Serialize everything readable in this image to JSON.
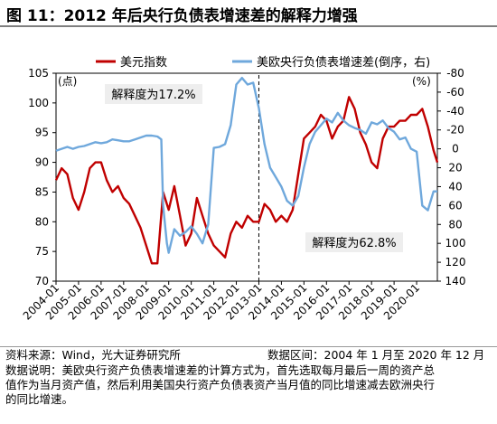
{
  "title": "图 11：2012 年后央行负债表增速差的解释力增强",
  "chart_data": {
    "type": "line",
    "legend": [
      "美元指数",
      "美欧央行负债表增速差(倒序，右)"
    ],
    "left_unit": "(点)",
    "right_unit": "(%)",
    "left_axis": {
      "min": 70,
      "max": 105,
      "ticks": [
        70,
        75,
        80,
        85,
        90,
        95,
        100,
        105
      ]
    },
    "right_axis": {
      "inverted": true,
      "min": -80,
      "max": 140,
      "tick_labels": [
        "-80",
        "-60",
        "-40",
        "-20",
        "0",
        "20",
        "40",
        "60",
        "80",
        "100",
        "120",
        "140"
      ]
    },
    "x_labels": [
      "2004-01",
      "2005-01",
      "2006-01",
      "2007-01",
      "2008-01",
      "2009-01",
      "2010-01",
      "2011-01",
      "2012-01",
      "2013-01",
      "2014-01",
      "2015-01",
      "2016-01",
      "2017-01",
      "2018-01",
      "2019-01",
      "2020-01"
    ],
    "annotations": [
      "解释度为17.2%",
      "解释度为62.8%"
    ],
    "series": [
      {
        "name": "美元指数",
        "color": "#c00000",
        "axis": "left",
        "x": [
          2004.0,
          2004.25,
          2004.5,
          2004.75,
          2005.0,
          2005.25,
          2005.5,
          2005.75,
          2006.0,
          2006.25,
          2006.5,
          2006.75,
          2007.0,
          2007.25,
          2007.5,
          2007.75,
          2008.0,
          2008.25,
          2008.5,
          2008.75,
          2009.0,
          2009.25,
          2009.5,
          2009.75,
          2010.0,
          2010.25,
          2010.5,
          2010.75,
          2011.0,
          2011.25,
          2011.5,
          2011.75,
          2012.0,
          2012.25,
          2012.5,
          2012.75,
          2013.0,
          2013.25,
          2013.5,
          2013.75,
          2014.0,
          2014.25,
          2014.5,
          2014.75,
          2015.0,
          2015.25,
          2015.5,
          2015.75,
          2016.0,
          2016.25,
          2016.5,
          2016.75,
          2017.0,
          2017.25,
          2017.5,
          2017.75,
          2018.0,
          2018.25,
          2018.5,
          2018.75,
          2019.0,
          2019.25,
          2019.5,
          2019.75,
          2020.0,
          2020.25,
          2020.5,
          2020.75,
          2020.92
        ],
        "y": [
          87,
          89,
          88,
          84,
          82,
          85,
          89,
          90,
          90,
          87,
          85,
          86,
          84,
          83,
          81,
          79,
          76,
          73,
          73,
          85,
          82,
          86,
          81,
          76,
          78,
          84,
          81,
          78,
          76,
          75,
          74,
          78,
          80,
          79,
          81,
          80,
          80,
          83,
          82,
          80,
          81,
          80,
          82,
          88,
          94,
          95,
          96,
          98,
          97,
          94,
          96,
          97,
          101,
          99,
          95,
          93,
          90,
          89,
          94,
          96,
          96,
          97,
          97,
          98,
          98,
          99,
          96,
          92,
          90
        ]
      },
      {
        "name": "美欧央行负债表增速差(倒序，右)",
        "color": "#6fa8dc",
        "axis": "right",
        "x": [
          2004.0,
          2004.25,
          2004.5,
          2004.75,
          2005.0,
          2005.25,
          2005.5,
          2005.75,
          2006.0,
          2006.25,
          2006.5,
          2006.75,
          2007.0,
          2007.25,
          2007.5,
          2007.75,
          2008.0,
          2008.25,
          2008.5,
          2008.67,
          2008.75,
          2008.92,
          2009.0,
          2009.25,
          2009.5,
          2009.75,
          2010.0,
          2010.25,
          2010.5,
          2010.75,
          2011.0,
          2011.25,
          2011.5,
          2011.75,
          2012.0,
          2012.25,
          2012.5,
          2012.75,
          2013.0,
          2013.25,
          2013.5,
          2013.75,
          2014.0,
          2014.25,
          2014.5,
          2014.75,
          2015.0,
          2015.25,
          2015.5,
          2015.75,
          2016.0,
          2016.25,
          2016.5,
          2016.75,
          2017.0,
          2017.25,
          2017.5,
          2017.75,
          2018.0,
          2018.25,
          2018.5,
          2018.75,
          2019.0,
          2019.25,
          2019.5,
          2019.75,
          2020.0,
          2020.25,
          2020.5,
          2020.75,
          2020.92
        ],
        "y": [
          2,
          0,
          -2,
          0,
          -2,
          -3,
          -5,
          -7,
          -6,
          -7,
          -10,
          -9,
          -8,
          -8,
          -10,
          -12,
          -14,
          -14,
          -13,
          -10,
          60,
          100,
          110,
          85,
          92,
          88,
          82,
          90,
          100,
          80,
          -1,
          -2,
          -5,
          -25,
          -68,
          -75,
          -68,
          -70,
          -43,
          -5,
          20,
          30,
          40,
          55,
          60,
          50,
          20,
          -5,
          -18,
          -25,
          -32,
          -28,
          -38,
          -30,
          -25,
          -22,
          -20,
          -16,
          -28,
          -26,
          -30,
          -22,
          -18,
          -10,
          -12,
          0,
          3,
          60,
          65,
          45,
          45
        ]
      }
    ]
  },
  "footer": {
    "source": "资料来源：Wind，光大证券研究所",
    "range": "数据区间：2004 年 1 月至 2020 年 12 月",
    "note_line1": "数据说明：美欧央行资产负债表增速差的计算方式为，首先选取每月最后一周的资产总",
    "note_line2": "值作为当月资产值，然后利用美国央行资产负债表资产当月值的同比增速减去欧洲央行",
    "note_line3": "的同比增速。"
  }
}
